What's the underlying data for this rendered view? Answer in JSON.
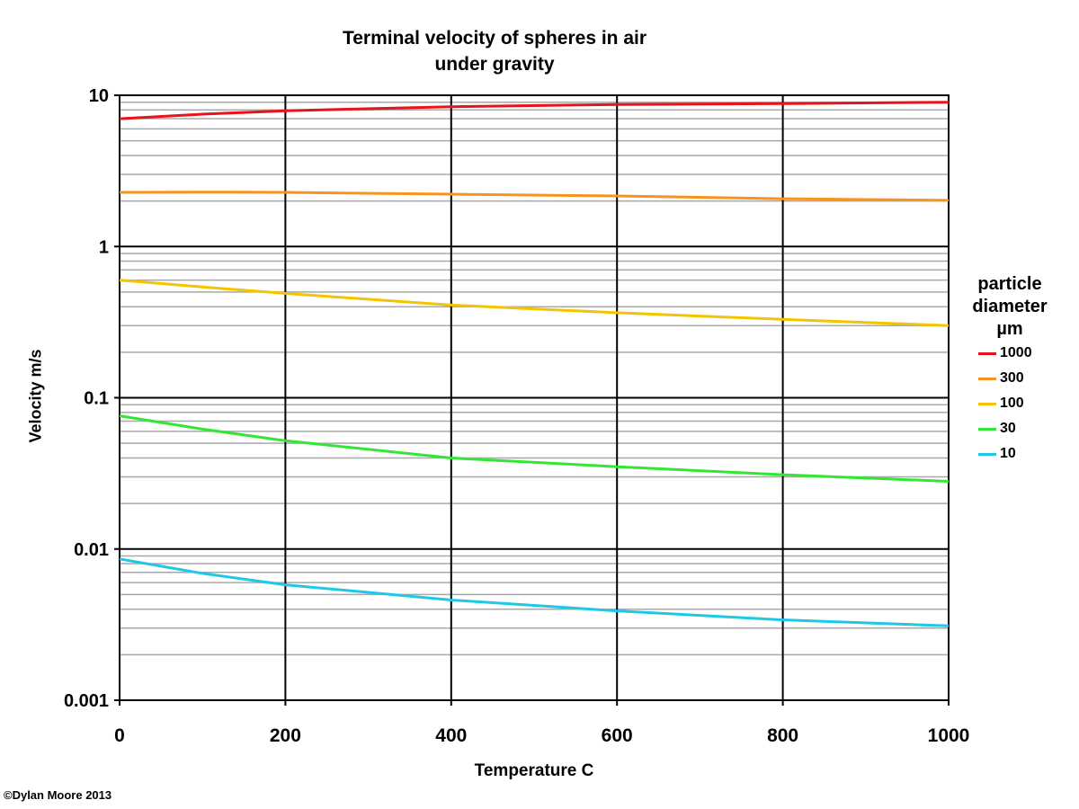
{
  "chart_data": {
    "type": "line",
    "title": [
      "Terminal velocity of spheres in air",
      "under gravity"
    ],
    "xlabel": "Temperature C",
    "ylabel": "Velocity m/s",
    "xlim": [
      0,
      1000
    ],
    "ylim": [
      0.001,
      10
    ],
    "yscale": "log",
    "grid": true,
    "x_ticks": [
      "0",
      "200",
      "400",
      "600",
      "800",
      "1000"
    ],
    "y_ticks": [
      "10",
      "1",
      "0.1",
      "0.01",
      "0.001"
    ],
    "legend_title": [
      "particle",
      "diameter",
      "µm"
    ],
    "legend_position": "right",
    "x": [
      0,
      100,
      200,
      400,
      600,
      800,
      1000
    ],
    "series": [
      {
        "name": "1000",
        "color": "#e8141c",
        "values": [
          7.0,
          7.5,
          7.9,
          8.4,
          8.7,
          8.8,
          9.0
        ]
      },
      {
        "name": "300",
        "color": "#f7941d",
        "values": [
          2.28,
          2.29,
          2.28,
          2.22,
          2.16,
          2.07,
          2.02
        ]
      },
      {
        "name": "100",
        "color": "#f5c400",
        "values": [
          0.6,
          0.54,
          0.49,
          0.41,
          0.365,
          0.33,
          0.3
        ]
      },
      {
        "name": "30",
        "color": "#33e633",
        "values": [
          0.076,
          0.062,
          0.052,
          0.04,
          0.035,
          0.031,
          0.028
        ]
      },
      {
        "name": "10",
        "color": "#1ec8e6",
        "values": [
          0.0086,
          0.0069,
          0.0058,
          0.0046,
          0.0039,
          0.0034,
          0.0031
        ]
      }
    ]
  },
  "copyright": "©Dylan Moore 2013"
}
